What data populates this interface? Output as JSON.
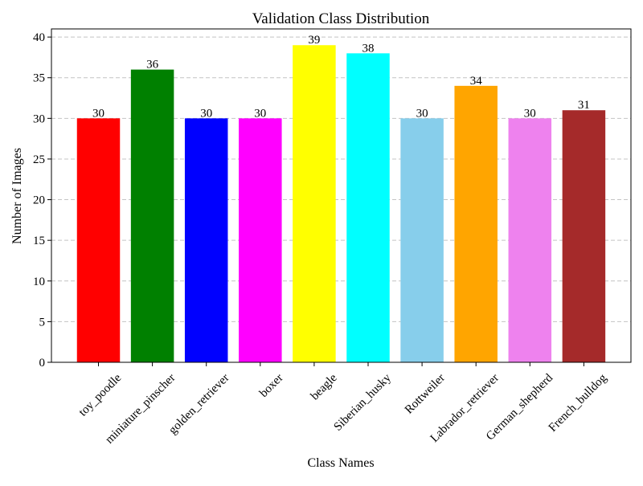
{
  "chart_data": {
    "type": "bar",
    "title": "Validation Class Distribution",
    "xlabel": "Class Names",
    "ylabel": "Number of Images",
    "categories": [
      "toy_poodle",
      "miniature_pinscher",
      "golden_retriever",
      "boxer",
      "beagle",
      "Siberian_husky",
      "Rottweiler",
      "Labrador_retriever",
      "German_shepherd",
      "French_bulldog"
    ],
    "values": [
      30,
      36,
      30,
      30,
      39,
      38,
      30,
      34,
      30,
      31
    ],
    "value_labels": [
      "30",
      "36",
      "30",
      "30",
      "39",
      "38",
      "30",
      "34",
      "30",
      "31"
    ],
    "colors": [
      "#ff0000",
      "#008000",
      "#0000ff",
      "#ff00ff",
      "#ffff00",
      "#00ffff",
      "#87ceeb",
      "#ffa500",
      "#ee82ee",
      "#a52a2a"
    ],
    "ylim": [
      0,
      41
    ],
    "yticks": [
      0,
      5,
      10,
      15,
      20,
      25,
      30,
      35,
      40
    ],
    "ytick_labels": [
      "0",
      "5",
      "10",
      "15",
      "20",
      "25",
      "30",
      "35",
      "40"
    ],
    "grid": "y-dashed",
    "legend": "none"
  }
}
